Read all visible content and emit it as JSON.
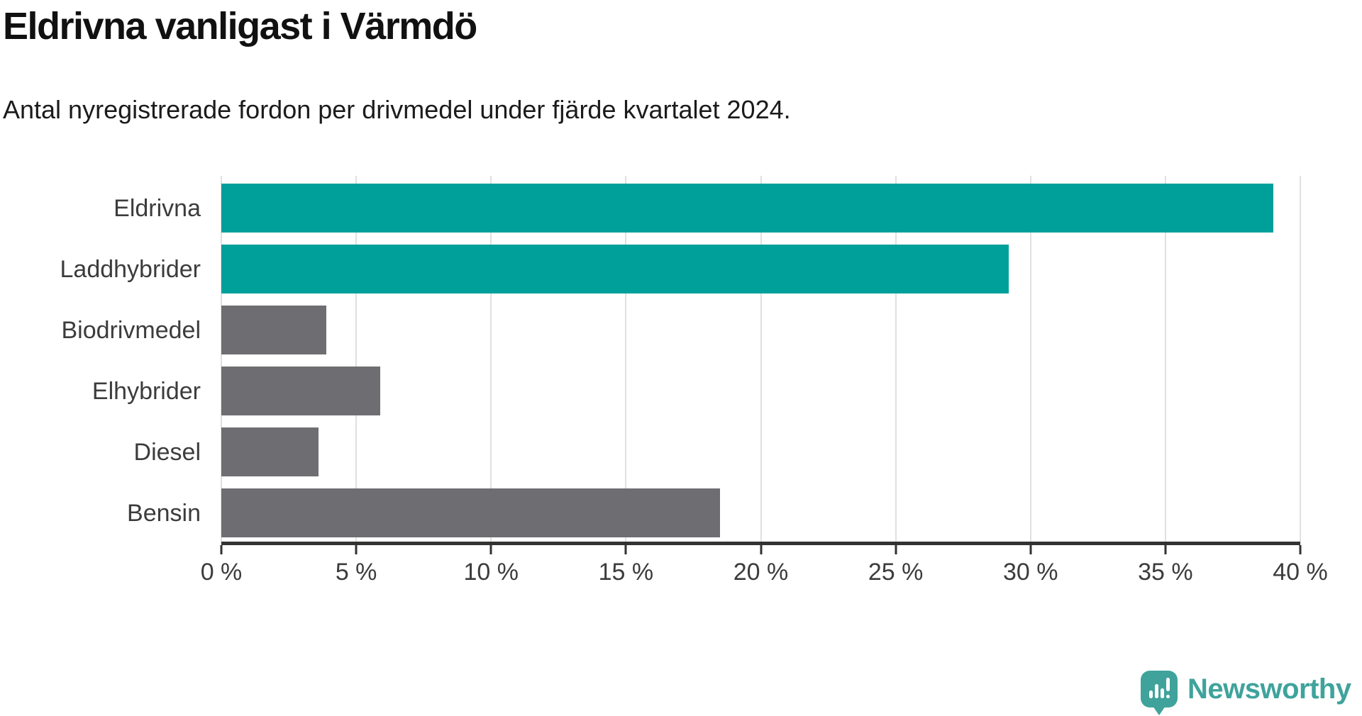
{
  "header": {
    "title": "Eldrivna vanligast i Värmdö",
    "subtitle": "Antal nyregistrerade fordon per drivmedel under fjärde kvartalet 2024."
  },
  "chart_data": {
    "type": "bar",
    "orientation": "horizontal",
    "title": "Eldrivna vanligast i Värmdö",
    "subtitle": "Antal nyregistrerade fordon per drivmedel under fjärde kvartalet 2024.",
    "categories": [
      "Eldrivna",
      "Laddhybrider",
      "Biodrivmedel",
      "Elhybrider",
      "Diesel",
      "Bensin"
    ],
    "values": [
      39.0,
      29.2,
      3.9,
      5.9,
      3.6,
      18.5
    ],
    "unit": "%",
    "bar_colors": [
      "#00a09a",
      "#00a09a",
      "#6e6e72",
      "#6e6e72",
      "#6e6e72",
      "#6e6e72"
    ],
    "highlight_color": "#00a09a",
    "default_color": "#6e6e72",
    "xlim": [
      0,
      40
    ],
    "x_ticks": [
      0,
      5,
      10,
      15,
      20,
      25,
      30,
      35,
      40
    ],
    "x_tick_labels": [
      "0 %",
      "5 %",
      "10 %",
      "15 %",
      "20 %",
      "25 %",
      "30 %",
      "35 %",
      "40 %"
    ],
    "grid": true,
    "gridline_color": "#e0e0e0",
    "axis_color": "#323232",
    "legend": "none"
  },
  "branding": {
    "logo_text": "Newsworthy",
    "logo_color": "#3fa39c",
    "logo_icon": "speech-bubble-bar-chart-exclamation"
  }
}
